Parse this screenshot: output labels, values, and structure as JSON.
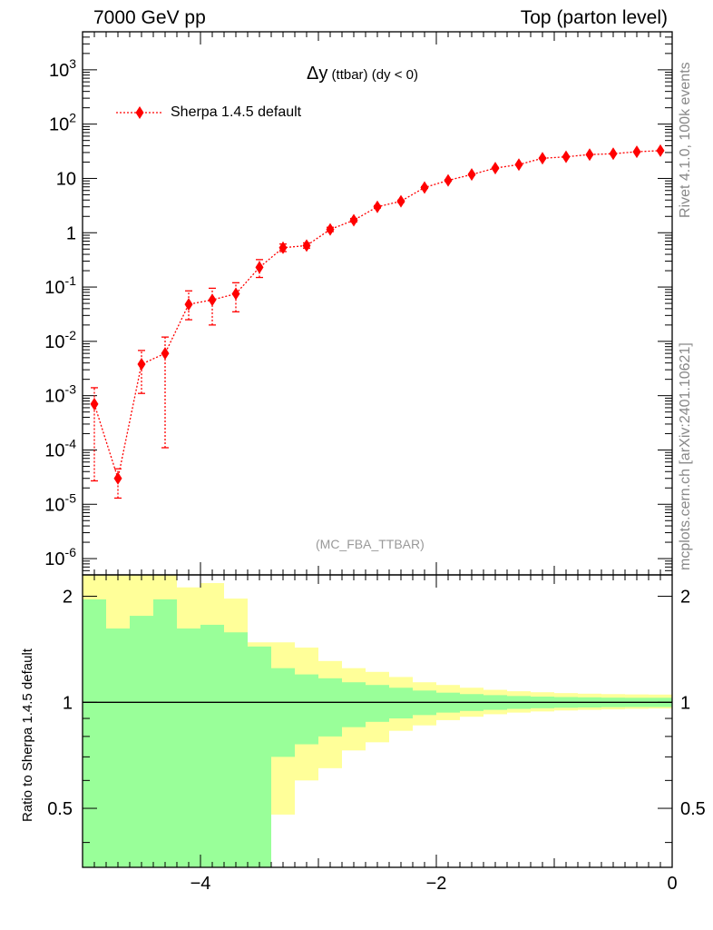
{
  "header": {
    "left": "7000 GeV pp",
    "right": "Top (parton level)"
  },
  "side_labels": {
    "top": "Rivet 4.1.0,  100k events",
    "bottom": "mcplots.cern.ch [arXiv:2401.10621]"
  },
  "analysis_label": "(MC_FBA_TTBAR)",
  "chart_data": [
    {
      "type": "scatter",
      "title_main": "Δy",
      "title_rest": " (ttbar) (dy < 0)",
      "yscale": "log",
      "xlim": [
        -5,
        0
      ],
      "ylim_exp": [
        -6.3,
        3.7
      ],
      "ytick_labels": [
        "10^-6",
        "10^-5",
        "10^-4",
        "10^-3",
        "10^-2",
        "10^-1",
        "1",
        "10",
        "10^2",
        "10^3"
      ],
      "legend": {
        "label": "Sherpa 1.4.5 default",
        "placement": "top-left"
      },
      "color": "#ff0000",
      "series": [
        {
          "name": "Sherpa 1.4.5 default",
          "x": [
            -4.9,
            -4.7,
            -4.5,
            -4.3,
            -4.1,
            -3.9,
            -3.7,
            -3.5,
            -3.3,
            -3.1,
            -2.9,
            -2.7,
            -2.5,
            -2.3,
            -2.1,
            -1.9,
            -1.7,
            -1.5,
            -1.3,
            -1.1,
            -0.9,
            -0.7,
            -0.5,
            -0.3,
            -0.1
          ],
          "y": [
            0.0007,
            3e-05,
            0.0038,
            0.006,
            0.048,
            0.058,
            0.075,
            0.23,
            0.53,
            0.58,
            1.15,
            1.7,
            3.0,
            3.8,
            6.8,
            9.2,
            11.8,
            15.5,
            18.0,
            23.5,
            25.0,
            27.5,
            28.5,
            31.0,
            32.5
          ],
          "ylo": [
            2.7e-05,
            1.3e-05,
            0.0011,
            0.00011,
            0.025,
            0.02,
            0.035,
            0.15,
            0.45,
            0.52,
            1.05,
            1.58,
            2.85,
            3.62,
            6.55,
            8.9,
            11.5,
            15.1,
            17.6,
            23.0,
            24.5,
            27.0,
            28.0,
            30.5,
            32.0
          ],
          "yhi": [
            0.0014,
            4.5e-05,
            0.0068,
            0.012,
            0.085,
            0.095,
            0.12,
            0.32,
            0.62,
            0.65,
            1.26,
            1.83,
            3.16,
            3.98,
            7.05,
            9.5,
            12.1,
            15.9,
            18.4,
            24.0,
            25.5,
            28.0,
            29.0,
            31.5,
            33.0
          ]
        }
      ]
    },
    {
      "type": "area",
      "ylabel": "Ratio to Sherpa 1.4.5 default",
      "yscale": "log",
      "xlim": [
        -5,
        0
      ],
      "ylim": [
        0.34,
        2.3
      ],
      "ytick_labels": [
        "0.5",
        "1",
        "2"
      ],
      "xtick_labels": [
        "−4",
        "−2",
        "0"
      ],
      "reference_line": 1,
      "bin_edges": [
        -5.0,
        -4.8,
        -4.6,
        -4.4,
        -4.2,
        -4.0,
        -3.8,
        -3.6,
        -3.4,
        -3.2,
        -3.0,
        -2.8,
        -2.6,
        -2.4,
        -2.2,
        -2.0,
        -1.8,
        -1.6,
        -1.4,
        -1.2,
        -1.0,
        -0.8,
        -0.6,
        -0.4,
        -0.2,
        0.0
      ],
      "bands": [
        {
          "name": "green",
          "color": "#99ff99",
          "upper": [
            1.96,
            1.62,
            1.76,
            1.96,
            1.62,
            1.66,
            1.58,
            1.44,
            1.25,
            1.2,
            1.17,
            1.14,
            1.12,
            1.1,
            1.08,
            1.065,
            1.055,
            1.048,
            1.042,
            1.038,
            1.035,
            1.033,
            1.031,
            1.03,
            1.03
          ],
          "lower": [
            0.34,
            0.34,
            0.34,
            0.34,
            0.34,
            0.34,
            0.34,
            0.34,
            0.7,
            0.76,
            0.8,
            0.85,
            0.88,
            0.9,
            0.92,
            0.935,
            0.945,
            0.952,
            0.958,
            0.962,
            0.965,
            0.967,
            0.969,
            0.97,
            0.97
          ]
        },
        {
          "name": "yellow",
          "color": "#ffff99",
          "upper": [
            2.3,
            2.3,
            2.3,
            2.3,
            2.12,
            2.18,
            1.97,
            1.48,
            1.48,
            1.43,
            1.31,
            1.25,
            1.22,
            1.18,
            1.14,
            1.12,
            1.1,
            1.085,
            1.075,
            1.068,
            1.062,
            1.058,
            1.055,
            1.053,
            1.052
          ],
          "lower": [
            0.34,
            0.34,
            0.35,
            0.34,
            0.34,
            0.34,
            0.35,
            0.53,
            0.48,
            0.6,
            0.65,
            0.73,
            0.77,
            0.83,
            0.86,
            0.89,
            0.91,
            0.925,
            0.935,
            0.942,
            0.948,
            0.952,
            0.955,
            0.958,
            0.96
          ]
        }
      ]
    }
  ]
}
